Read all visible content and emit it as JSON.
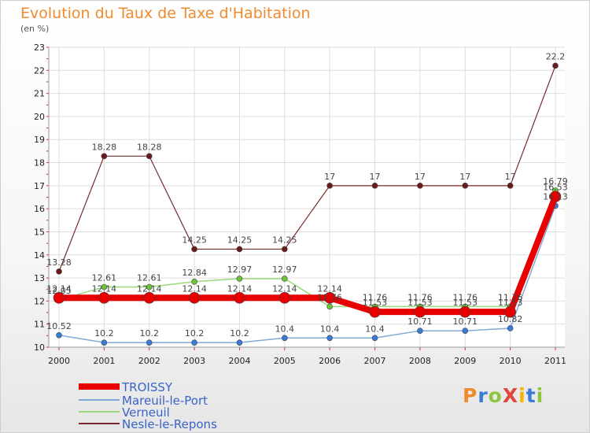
{
  "chart_data": {
    "type": "line",
    "title": "Evolution du Taux de Taxe d'Habitation",
    "subtitle": "(en %)",
    "xlabel": "",
    "ylabel": "",
    "categories": [
      "2000",
      "2001",
      "2002",
      "2003",
      "2004",
      "2005",
      "2006",
      "2007",
      "2008",
      "2009",
      "2010",
      "2011"
    ],
    "ylim": [
      10,
      23
    ],
    "yticks": [
      10,
      11,
      12,
      13,
      14,
      15,
      16,
      17,
      18,
      19,
      20,
      21,
      22,
      23
    ],
    "grid": true,
    "legend_position": "bottom-left",
    "series": [
      {
        "name": "TROISSY",
        "color": "#e80000",
        "values": [
          12.14,
          12.14,
          12.14,
          12.14,
          12.14,
          12.14,
          12.14,
          11.53,
          11.53,
          11.53,
          11.53,
          16.53
        ],
        "labels": [
          "12.14",
          "12.14",
          "12.14",
          "12.14",
          "12.14",
          "12.14",
          "12.14",
          "11.53",
          "11.53",
          "11.53",
          "11.53",
          "16.53"
        ]
      },
      {
        "name": "Mareuil-le-Port",
        "color": "#5b9bd5",
        "values": [
          10.52,
          10.2,
          10.2,
          10.2,
          10.2,
          10.4,
          10.4,
          10.4,
          10.71,
          10.71,
          10.82,
          16.13
        ],
        "labels": [
          "10.52",
          "10.2",
          "10.2",
          "10.2",
          "10.2",
          "10.4",
          "10.4",
          "10.4",
          "10.71",
          "10.71",
          "10.82",
          "16.13"
        ]
      },
      {
        "name": "Verneuil",
        "color": "#8fd16a",
        "values": [
          12.05,
          12.61,
          12.61,
          12.84,
          12.97,
          12.97,
          11.76,
          11.76,
          11.76,
          11.76,
          11.76,
          16.79
        ],
        "labels": [
          "12.05",
          "12.61",
          "12.61",
          "12.84",
          "12.97",
          "12.97",
          "11.76",
          "11.76",
          "11.76",
          "11.76",
          "11.76",
          "16.79"
        ]
      },
      {
        "name": "Nesle-le-Repons",
        "color": "#7a2a2a",
        "values": [
          13.28,
          18.28,
          18.28,
          14.25,
          14.25,
          14.25,
          17,
          17,
          17,
          17,
          17,
          22.2
        ],
        "labels": [
          "13.28",
          "18.28",
          "18.28",
          "14.25",
          "14.25",
          "14.25",
          "17",
          "17",
          "17",
          "17",
          "17",
          "22.2"
        ]
      }
    ]
  },
  "brand": {
    "text": "ProXiti",
    "letter_colors": [
      "#f08a2c",
      "#3a7bd5",
      "#8cc63f",
      "#e2453c",
      "#f2b600",
      "#3a7bd5",
      "#8cc63f"
    ]
  }
}
